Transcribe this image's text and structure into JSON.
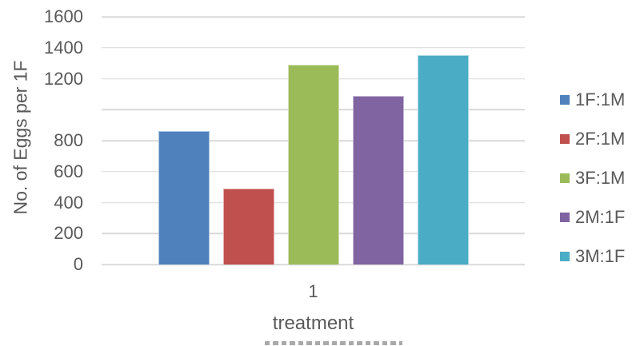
{
  "chart_data": {
    "type": "bar",
    "title": "",
    "xlabel": "treatment",
    "ylabel": "No. of Eggs per 1F",
    "x_categories": [
      "1"
    ],
    "categories": [
      "1F:1M",
      "2F:1M",
      "3F:1M",
      "2M:1F",
      "3M:1F"
    ],
    "series": [
      {
        "name": "1F:1M",
        "value": 860,
        "color": "#4F81BD"
      },
      {
        "name": "2F:1M",
        "value": 490,
        "color": "#C0504D"
      },
      {
        "name": "3F:1M",
        "value": 1290,
        "color": "#9BBB59"
      },
      {
        "name": "2M:1F",
        "value": 1090,
        "color": "#8064A2"
      },
      {
        "name": "3M:1F",
        "value": 1350,
        "color": "#4BACC6"
      }
    ],
    "ylim": [
      0,
      1600
    ],
    "y_tick_step": 200,
    "y_tick_labels": [
      "0",
      "200",
      "400",
      "600",
      "800",
      "",
      "1200",
      "1400",
      "1600"
    ],
    "grid": true,
    "legend_position": "right"
  },
  "styles": {
    "text_color": "#595959",
    "gridline_color": "#D9D9D9"
  }
}
